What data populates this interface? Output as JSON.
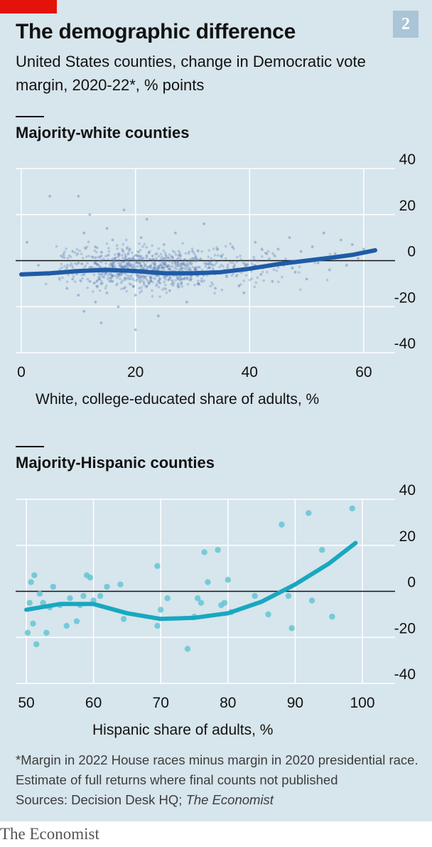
{
  "badge": {
    "number": "2"
  },
  "header": {
    "title": "The demographic difference",
    "subtitle": "United States counties, change in Democratic vote margin, 2020-22*, % points"
  },
  "chart_data": [
    {
      "type": "scatter",
      "title": "Majority-white counties",
      "xlabel": "White, college-educated share of adults, %",
      "ylabel": "",
      "xlim": [
        0,
        62
      ],
      "ylim": [
        -40,
        40
      ],
      "xticks": [
        "0",
        "20",
        "40",
        "60"
      ],
      "yticks": [
        "40",
        "20",
        "0",
        "-20",
        "-40"
      ],
      "point_color": "#5d7fb8",
      "trend_color": "#1f5ba7",
      "series": [
        {
          "points": [
            [
              1,
              8
            ],
            [
              3,
              -2
            ],
            [
              5,
              28
            ],
            [
              6,
              -5
            ],
            [
              7,
              2
            ],
            [
              8,
              -12
            ],
            [
              8,
              -3
            ],
            [
              9,
              -8
            ],
            [
              9,
              4
            ],
            [
              10,
              -15
            ],
            [
              10,
              -1
            ],
            [
              10,
              28
            ],
            [
              11,
              -6
            ],
            [
              11,
              -22
            ],
            [
              11,
              12
            ],
            [
              12,
              -3
            ],
            [
              12,
              -9
            ],
            [
              12,
              20
            ],
            [
              13,
              -18
            ],
            [
              13,
              -1
            ],
            [
              13,
              6
            ],
            [
              14,
              -10
            ],
            [
              14,
              2
            ],
            [
              14,
              -27
            ],
            [
              15,
              -5
            ],
            [
              15,
              14
            ],
            [
              15,
              -14
            ],
            [
              16,
              -2
            ],
            [
              16,
              -9
            ],
            [
              16,
              9
            ],
            [
              17,
              -6
            ],
            [
              17,
              -20
            ],
            [
              17,
              3
            ],
            [
              18,
              -12
            ],
            [
              18,
              22
            ],
            [
              18,
              -3
            ],
            [
              19,
              -8
            ],
            [
              19,
              5
            ],
            [
              20,
              -15
            ],
            [
              20,
              -30
            ],
            [
              21,
              -4
            ],
            [
              21,
              10
            ],
            [
              22,
              -11
            ],
            [
              22,
              18
            ],
            [
              23,
              -6
            ],
            [
              23,
              2
            ],
            [
              24,
              -9
            ],
            [
              24,
              -24
            ],
            [
              25,
              -3
            ],
            [
              25,
              7
            ],
            [
              26,
              -13
            ],
            [
              27,
              -5
            ],
            [
              27,
              12
            ],
            [
              28,
              -8
            ],
            [
              29,
              -2
            ],
            [
              29,
              -18
            ],
            [
              30,
              4
            ],
            [
              31,
              -10
            ],
            [
              32,
              -6
            ],
            [
              32,
              16
            ],
            [
              33,
              -3
            ],
            [
              34,
              -12
            ],
            [
              35,
              2
            ],
            [
              36,
              -7
            ],
            [
              37,
              6
            ],
            [
              38,
              -4
            ],
            [
              39,
              -14
            ],
            [
              40,
              0
            ],
            [
              41,
              8
            ],
            [
              42,
              -6
            ],
            [
              43,
              3
            ],
            [
              44,
              -9
            ],
            [
              45,
              5
            ],
            [
              46,
              -2
            ],
            [
              47,
              10
            ],
            [
              48,
              -5
            ],
            [
              49,
              4
            ],
            [
              50,
              -8
            ],
            [
              51,
              6
            ],
            [
              52,
              -1
            ],
            [
              53,
              12
            ],
            [
              54,
              -4
            ],
            [
              55,
              3
            ],
            [
              56,
              9
            ],
            [
              57,
              -2
            ],
            [
              58,
              7
            ],
            [
              59,
              1
            ],
            [
              60,
              5
            ],
            [
              61,
              4
            ]
          ]
        }
      ],
      "trend": [
        [
          0,
          -6
        ],
        [
          5,
          -5.5
        ],
        [
          10,
          -4.5
        ],
        [
          15,
          -4
        ],
        [
          20,
          -4.5
        ],
        [
          25,
          -5.5
        ],
        [
          30,
          -5.5
        ],
        [
          35,
          -5
        ],
        [
          40,
          -3.5
        ],
        [
          45,
          -1.5
        ],
        [
          50,
          0
        ],
        [
          55,
          1.5
        ],
        [
          58,
          2.5
        ],
        [
          62,
          4.5
        ]
      ]
    },
    {
      "type": "scatter",
      "title": "Majority-Hispanic counties",
      "xlabel": "Hispanic share of adults, %",
      "ylabel": "",
      "xlim": [
        50,
        100
      ],
      "ylim": [
        -40,
        40
      ],
      "xticks": [
        "50",
        "60",
        "70",
        "80",
        "90",
        "100"
      ],
      "yticks": [
        "40",
        "20",
        "0",
        "-20",
        "-40"
      ],
      "point_color": "#5ec3d2",
      "trend_color": "#18a8c0",
      "series": [
        {
          "points": [
            [
              50.2,
              -18
            ],
            [
              50.5,
              -5
            ],
            [
              50.7,
              4
            ],
            [
              51,
              -14
            ],
            [
              51.2,
              7
            ],
            [
              51.5,
              -23
            ],
            [
              52,
              -1
            ],
            [
              52.5,
              -5
            ],
            [
              53,
              -18
            ],
            [
              53.5,
              -7
            ],
            [
              54,
              2
            ],
            [
              55,
              -6
            ],
            [
              56,
              -15
            ],
            [
              56.5,
              -3
            ],
            [
              57.5,
              -13
            ],
            [
              58,
              -6
            ],
            [
              58.5,
              -2
            ],
            [
              59,
              7
            ],
            [
              59.5,
              6
            ],
            [
              60,
              -4
            ],
            [
              61,
              -2
            ],
            [
              62,
              2
            ],
            [
              64,
              3
            ],
            [
              64.5,
              -12
            ],
            [
              69.5,
              11
            ],
            [
              69.5,
              -15
            ],
            [
              70,
              -8
            ],
            [
              71,
              -3
            ],
            [
              74,
              -25
            ],
            [
              75,
              -11
            ],
            [
              75.5,
              -3
            ],
            [
              76,
              -5
            ],
            [
              76.5,
              17
            ],
            [
              77,
              4
            ],
            [
              78.5,
              18
            ],
            [
              79,
              -6
            ],
            [
              79.5,
              -5
            ],
            [
              80,
              5
            ],
            [
              80.5,
              -9
            ],
            [
              84,
              -2
            ],
            [
              86,
              -10
            ],
            [
              88,
              29
            ],
            [
              89,
              -2
            ],
            [
              89.5,
              -16
            ],
            [
              92,
              34
            ],
            [
              92.5,
              -4
            ],
            [
              94,
              18
            ],
            [
              95.5,
              -11
            ],
            [
              98.5,
              36
            ]
          ]
        }
      ],
      "trend": [
        [
          50,
          -8
        ],
        [
          55,
          -5.5
        ],
        [
          60,
          -5.5
        ],
        [
          65,
          -9.5
        ],
        [
          70,
          -12
        ],
        [
          75,
          -11.5
        ],
        [
          80,
          -9.5
        ],
        [
          85,
          -4.5
        ],
        [
          90,
          3
        ],
        [
          95,
          12
        ],
        [
          99,
          21
        ]
      ]
    }
  ],
  "footnote": {
    "note": "*Margin in 2022 House races minus margin in 2020 presidential race. Estimate of full returns where final counts not published",
    "sources_prefix": "Sources: Decision Desk HQ; ",
    "sources_publication": "The Economist"
  },
  "brand": {
    "name": "The Economist"
  },
  "colors": {
    "background": "#d7e5ec",
    "grid": "#ffffff",
    "zero_line": "#121212",
    "accent_red": "#e3120b",
    "badge": "#a9c5d6"
  }
}
